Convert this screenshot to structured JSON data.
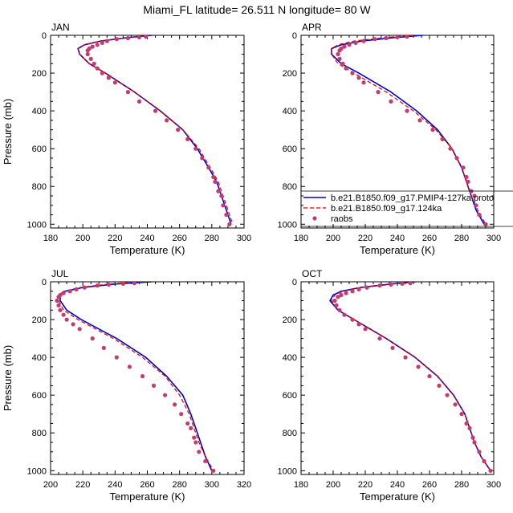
{
  "title": "Miami_FL  latitude= 26.511 N longitude= 80 W",
  "legend": {
    "placement": "right, between the top panels and the bottom panels",
    "entries": [
      {
        "label": "b.e21.B1850.f09_g17.PMIP4-127ka.proto",
        "style": "solid line",
        "color": "#0000cc"
      },
      {
        "label": "b.e21.B1850.f09_g17.124ka",
        "style": "dashed line",
        "color": "#dd0000"
      },
      {
        "label": "raobs",
        "style": "dots",
        "color": "#c43c6e"
      }
    ]
  },
  "chart_data": [
    {
      "type": "line",
      "title": "JAN",
      "xlabel": "Temperature (K)",
      "ylabel": "Pressure (mb)",
      "xlim": [
        180,
        300
      ],
      "ylim": [
        0,
        1020
      ],
      "y_inverted": true,
      "xticks": [
        180,
        200,
        220,
        240,
        260,
        280,
        300
      ],
      "yticks": [
        0,
        200,
        400,
        600,
        800,
        1000
      ],
      "series": [
        {
          "name": "b.e21.B1850.f09_g17.PMIP4-127ka.proto",
          "x": [
            243,
            228,
            211,
            201,
            197,
            198,
            204,
            214,
            232,
            248,
            262,
            271,
            278,
            283,
            286,
            289,
            292
          ],
          "y": [
            0,
            12,
            30,
            50,
            70,
            100,
            150,
            200,
            300,
            400,
            500,
            600,
            700,
            775,
            850,
            925,
            1000
          ]
        },
        {
          "name": "b.e21.B1850.f09_g17.124ka",
          "x": [
            241,
            228,
            211,
            201,
            197,
            198,
            204,
            214,
            232,
            248,
            262,
            272,
            279,
            284,
            287,
            290,
            293
          ],
          "y": [
            0,
            12,
            30,
            50,
            70,
            100,
            150,
            200,
            300,
            400,
            500,
            600,
            700,
            775,
            850,
            925,
            1000
          ]
        },
        {
          "name": "raobs",
          "x": [
            239,
            235,
            228,
            221,
            215,
            212,
            209,
            206,
            204,
            203,
            203,
            205,
            207,
            209,
            212,
            216,
            220,
            228,
            235,
            245,
            252,
            259,
            265,
            270,
            274,
            278,
            281,
            282,
            284,
            286,
            287,
            289,
            291
          ],
          "y": [
            7,
            10,
            15,
            20,
            30,
            40,
            50,
            60,
            70,
            80,
            100,
            125,
            150,
            175,
            200,
            225,
            250,
            300,
            350,
            400,
            450,
            500,
            550,
            600,
            650,
            700,
            750,
            775,
            825,
            850,
            900,
            950,
            1000
          ]
        }
      ]
    },
    {
      "type": "line",
      "title": "APR",
      "xlabel": "Temperature (K)",
      "ylabel": "",
      "xlim": [
        180,
        300
      ],
      "ylim": [
        0,
        1020
      ],
      "y_inverted": true,
      "xticks": [
        180,
        200,
        220,
        240,
        260,
        280,
        300
      ],
      "yticks": [
        0,
        200,
        400,
        600,
        800,
        1000
      ],
      "series": [
        {
          "name": "b.e21.B1850.f09_g17.PMIP4-127ka.proto",
          "x": [
            256,
            238,
            218,
            205,
            199,
            199,
            205,
            216,
            236,
            252,
            265,
            274,
            280,
            283,
            286,
            289,
            294
          ],
          "y": [
            0,
            12,
            30,
            50,
            70,
            100,
            150,
            200,
            300,
            400,
            500,
            600,
            700,
            775,
            850,
            925,
            1000
          ]
        },
        {
          "name": "b.e21.B1850.f09_g17.124ka",
          "x": [
            250,
            232,
            213,
            203,
            199,
            199,
            203,
            213,
            233,
            250,
            264,
            274,
            280,
            283,
            286,
            290,
            295
          ],
          "y": [
            0,
            12,
            30,
            50,
            70,
            100,
            150,
            200,
            300,
            400,
            500,
            600,
            700,
            775,
            850,
            925,
            1000
          ]
        },
        {
          "name": "raobs",
          "x": [
            246,
            240,
            233,
            226,
            219,
            214,
            210,
            207,
            205,
            204,
            203,
            204,
            206,
            208,
            212,
            216,
            219,
            228,
            236,
            246,
            254,
            262,
            268,
            273,
            277,
            281,
            283,
            284,
            286,
            288,
            289,
            291,
            295
          ],
          "y": [
            7,
            10,
            15,
            20,
            30,
            40,
            50,
            60,
            70,
            80,
            100,
            125,
            150,
            175,
            200,
            225,
            250,
            300,
            350,
            400,
            450,
            500,
            550,
            600,
            650,
            700,
            750,
            775,
            825,
            850,
            900,
            950,
            1000
          ]
        }
      ]
    },
    {
      "type": "line",
      "title": "JUL",
      "xlabel": "Temperature (K)",
      "ylabel": "Pressure (mb)",
      "xlim": [
        200,
        320
      ],
      "ylim": [
        0,
        1020
      ],
      "y_inverted": true,
      "xticks": [
        200,
        220,
        240,
        260,
        280,
        300,
        320
      ],
      "yticks": [
        0,
        200,
        400,
        600,
        800,
        1000
      ],
      "series": [
        {
          "name": "b.e21.B1850.f09_g17.PMIP4-127ka.proto",
          "x": [
            263,
            240,
            220,
            209,
            206,
            206,
            210,
            219,
            241,
            259,
            272,
            282,
            287,
            290,
            293,
            296,
            300
          ],
          "y": [
            0,
            12,
            30,
            50,
            70,
            100,
            150,
            200,
            300,
            400,
            500,
            600,
            700,
            775,
            850,
            925,
            1000
          ]
        },
        {
          "name": "b.e21.B1850.f09_g17.124ka",
          "x": [
            256,
            236,
            218,
            208,
            205,
            205,
            208,
            217,
            239,
            257,
            271,
            280,
            286,
            289,
            292,
            296,
            301
          ],
          "y": [
            0,
            12,
            30,
            50,
            70,
            100,
            150,
            200,
            300,
            400,
            500,
            600,
            700,
            775,
            850,
            925,
            1000
          ]
        },
        {
          "name": "raobs",
          "x": [
            252,
            245,
            236,
            229,
            221,
            216,
            212,
            208,
            206,
            205,
            204,
            205,
            206,
            208,
            210,
            214,
            218,
            226,
            233,
            241,
            249,
            257,
            264,
            271,
            277,
            281,
            285,
            287,
            289,
            290,
            292,
            296,
            301
          ],
          "y": [
            7,
            10,
            15,
            20,
            30,
            40,
            50,
            60,
            70,
            80,
            100,
            125,
            150,
            175,
            200,
            225,
            250,
            300,
            350,
            400,
            450,
            500,
            550,
            600,
            650,
            700,
            750,
            775,
            825,
            850,
            900,
            950,
            1000
          ]
        }
      ]
    },
    {
      "type": "line",
      "title": "OCT",
      "xlabel": "Temperature (K)",
      "ylabel": "",
      "xlim": [
        180,
        300
      ],
      "ylim": [
        0,
        1020
      ],
      "y_inverted": true,
      "xticks": [
        180,
        200,
        220,
        240,
        260,
        280,
        300
      ],
      "yticks": [
        0,
        200,
        400,
        600,
        800,
        1000
      ],
      "series": [
        {
          "name": "b.e21.B1850.f09_g17.PMIP4-127ka.proto",
          "x": [
            251,
            236,
            217,
            205,
            200,
            198,
            203,
            213,
            233,
            251,
            265,
            275,
            282,
            285,
            288,
            292,
            298
          ],
          "y": [
            0,
            12,
            30,
            50,
            70,
            100,
            150,
            200,
            300,
            400,
            500,
            600,
            700,
            775,
            850,
            925,
            1000
          ]
        },
        {
          "name": "b.e21.B1850.f09_g17.124ka",
          "x": [
            253,
            238,
            218,
            206,
            201,
            199,
            203,
            213,
            233,
            251,
            265,
            275,
            282,
            285,
            288,
            292,
            298
          ],
          "y": [
            0,
            12,
            30,
            50,
            70,
            100,
            150,
            200,
            300,
            400,
            500,
            600,
            700,
            775,
            850,
            925,
            1000
          ]
        },
        {
          "name": "raobs",
          "x": [
            248,
            243,
            236,
            229,
            221,
            216,
            212,
            208,
            205,
            203,
            201,
            202,
            204,
            207,
            212,
            216,
            220,
            229,
            237,
            245,
            253,
            260,
            266,
            271,
            276,
            280,
            283,
            285,
            287,
            288,
            291,
            294,
            298
          ],
          "y": [
            7,
            10,
            15,
            20,
            30,
            40,
            50,
            60,
            70,
            80,
            100,
            125,
            150,
            175,
            200,
            225,
            250,
            300,
            350,
            400,
            450,
            500,
            550,
            600,
            650,
            700,
            750,
            775,
            825,
            850,
            900,
            950,
            1000
          ]
        }
      ]
    }
  ]
}
